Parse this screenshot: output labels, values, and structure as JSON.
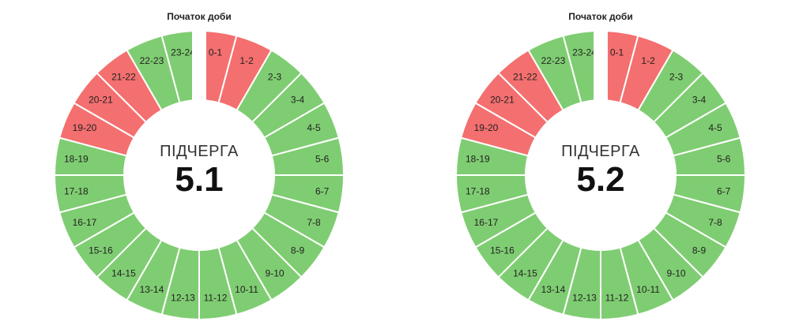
{
  "chart_data": [
    {
      "type": "pie",
      "start_label": "Початок доби",
      "center_title": "ПІДЧЕРГА",
      "center_value": "5.1",
      "colors": {
        "on": "#7fcd72",
        "off": "#f46f6f"
      },
      "segments": [
        {
          "label": "0-1",
          "state": "off"
        },
        {
          "label": "1-2",
          "state": "off"
        },
        {
          "label": "2-3",
          "state": "on"
        },
        {
          "label": "3-4",
          "state": "on"
        },
        {
          "label": "4-5",
          "state": "on"
        },
        {
          "label": "5-6",
          "state": "on"
        },
        {
          "label": "6-7",
          "state": "on"
        },
        {
          "label": "7-8",
          "state": "on"
        },
        {
          "label": "8-9",
          "state": "on"
        },
        {
          "label": "9-10",
          "state": "on"
        },
        {
          "label": "10-11",
          "state": "on"
        },
        {
          "label": "11-12",
          "state": "on"
        },
        {
          "label": "12-13",
          "state": "on"
        },
        {
          "label": "13-14",
          "state": "on"
        },
        {
          "label": "14-15",
          "state": "on"
        },
        {
          "label": "15-16",
          "state": "on"
        },
        {
          "label": "16-17",
          "state": "on"
        },
        {
          "label": "17-18",
          "state": "on"
        },
        {
          "label": "18-19",
          "state": "on"
        },
        {
          "label": "19-20",
          "state": "off"
        },
        {
          "label": "20-21",
          "state": "off"
        },
        {
          "label": "21-22",
          "state": "off"
        },
        {
          "label": "22-23",
          "state": "on"
        },
        {
          "label": "23-24",
          "state": "on"
        }
      ]
    },
    {
      "type": "pie",
      "start_label": "Початок доби",
      "center_title": "ПІДЧЕРГА",
      "center_value": "5.2",
      "colors": {
        "on": "#7fcd72",
        "off": "#f46f6f"
      },
      "segments": [
        {
          "label": "0-1",
          "state": "off"
        },
        {
          "label": "1-2",
          "state": "off"
        },
        {
          "label": "2-3",
          "state": "on"
        },
        {
          "label": "3-4",
          "state": "on"
        },
        {
          "label": "4-5",
          "state": "on"
        },
        {
          "label": "5-6",
          "state": "on"
        },
        {
          "label": "6-7",
          "state": "on"
        },
        {
          "label": "7-8",
          "state": "on"
        },
        {
          "label": "8-9",
          "state": "on"
        },
        {
          "label": "9-10",
          "state": "on"
        },
        {
          "label": "10-11",
          "state": "on"
        },
        {
          "label": "11-12",
          "state": "on"
        },
        {
          "label": "12-13",
          "state": "on"
        },
        {
          "label": "13-14",
          "state": "on"
        },
        {
          "label": "14-15",
          "state": "on"
        },
        {
          "label": "15-16",
          "state": "on"
        },
        {
          "label": "16-17",
          "state": "on"
        },
        {
          "label": "17-18",
          "state": "on"
        },
        {
          "label": "18-19",
          "state": "on"
        },
        {
          "label": "19-20",
          "state": "off"
        },
        {
          "label": "20-21",
          "state": "off"
        },
        {
          "label": "21-22",
          "state": "off"
        },
        {
          "label": "22-23",
          "state": "on"
        },
        {
          "label": "23-24",
          "state": "on"
        }
      ]
    }
  ]
}
